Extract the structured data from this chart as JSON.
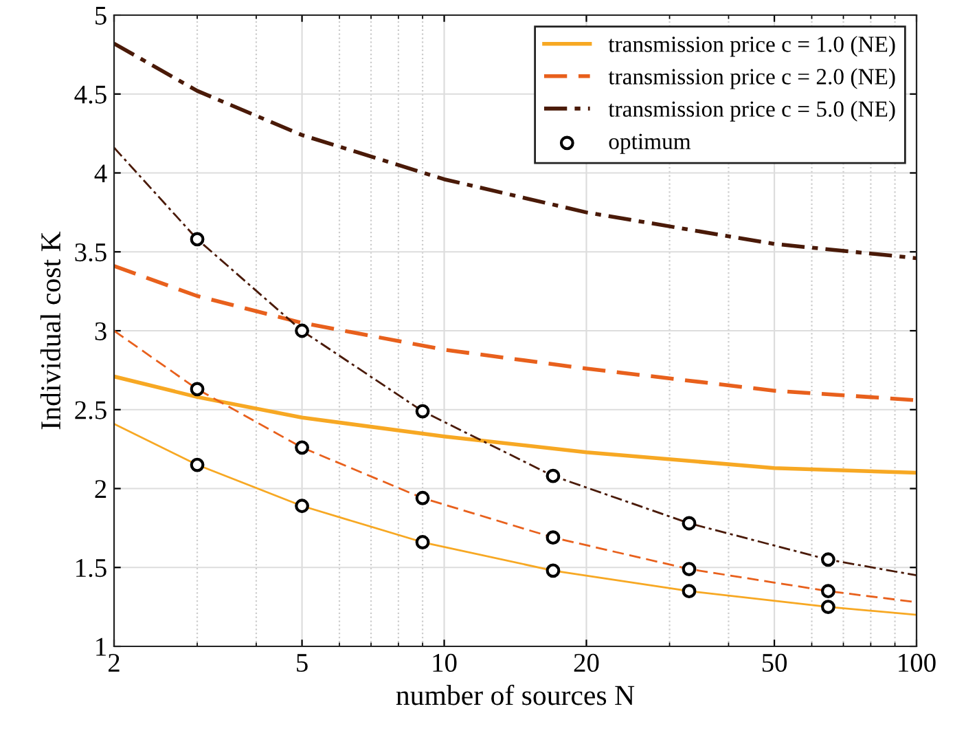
{
  "chart_data": {
    "type": "line",
    "xlabel": "number of sources N",
    "ylabel": "Individual cost K",
    "log": "x",
    "grid": true,
    "legend": "top right",
    "xlim": [
      2,
      100
    ],
    "xticks": [
      2,
      5,
      10,
      20,
      50,
      100
    ],
    "ylim": [
      1,
      5
    ],
    "yticks": [
      1,
      1.5,
      2,
      2.5,
      3,
      3.5,
      4,
      4.5,
      5
    ],
    "series": [
      {
        "name": "transmission price c = 1.0 (NE)",
        "color": "#f7a823",
        "line_style": "solid",
        "x": [
          2,
          3,
          5,
          10,
          20,
          50,
          100
        ],
        "values": [
          2.71,
          2.58,
          2.45,
          2.33,
          2.23,
          2.13,
          2.1
        ]
      },
      {
        "name": "transmission price c = 2.0 (NE)",
        "color": "#e8601c",
        "line_style": "dashed",
        "x": [
          2,
          3,
          5,
          10,
          20,
          50,
          100
        ],
        "values": [
          3.41,
          3.22,
          3.05,
          2.88,
          2.76,
          2.62,
          2.56
        ]
      },
      {
        "name": "transmission price c = 5.0 (NE)",
        "color": "#4a1a08",
        "line_style": "dashdot",
        "x": [
          2,
          3,
          5,
          10,
          20,
          50,
          100
        ],
        "values": [
          4.82,
          4.52,
          4.24,
          3.96,
          3.75,
          3.55,
          3.46
        ]
      },
      {
        "color": "#f7a823",
        "line_style": "solid",
        "x": [
          2,
          3,
          5,
          9,
          17,
          33,
          65,
          100
        ],
        "values": [
          2.41,
          2.15,
          1.89,
          1.66,
          1.48,
          1.35,
          1.25,
          1.2
        ]
      },
      {
        "color": "#e8601c",
        "line_style": "dashed",
        "x": [
          2,
          3,
          5,
          9,
          17,
          33,
          65,
          100
        ],
        "values": [
          3.0,
          2.63,
          2.26,
          1.94,
          1.69,
          1.49,
          1.35,
          1.28
        ]
      },
      {
        "color": "#4a1a08",
        "line_style": "dashdot",
        "x": [
          2,
          3,
          5,
          9,
          17,
          33,
          65,
          100
        ],
        "values": [
          4.16,
          3.58,
          3.0,
          2.49,
          2.08,
          1.78,
          1.55,
          1.45
        ]
      },
      {
        "name": "optimum",
        "type": "scatter",
        "marker": "circle",
        "color": "#000000",
        "x": [
          3,
          5,
          9,
          17,
          33,
          65,
          3,
          5,
          9,
          17,
          33,
          65,
          3,
          5,
          9,
          17,
          33,
          65
        ],
        "values": [
          2.15,
          1.89,
          1.66,
          1.48,
          1.35,
          1.25,
          2.63,
          2.26,
          1.94,
          1.69,
          1.49,
          1.35,
          3.58,
          3.0,
          2.49,
          2.08,
          1.78,
          1.55
        ]
      }
    ]
  }
}
